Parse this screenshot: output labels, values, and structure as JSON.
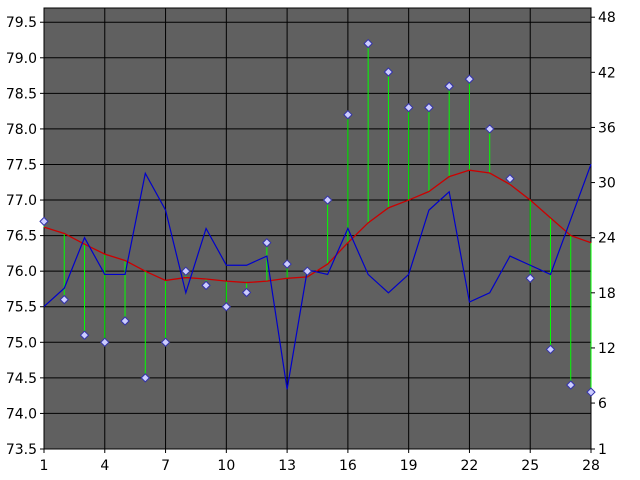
{
  "chart_data": {
    "type": "line",
    "x": [
      1,
      2,
      3,
      4,
      5,
      6,
      7,
      8,
      9,
      10,
      11,
      12,
      13,
      14,
      15,
      16,
      17,
      18,
      19,
      20,
      21,
      22,
      23,
      24,
      25,
      26,
      27,
      28
    ],
    "x_ticks": [
      1,
      4,
      7,
      10,
      13,
      16,
      19,
      22,
      25,
      28
    ],
    "xlim": [
      1,
      28
    ],
    "y_left": {
      "lim": [
        73.5,
        79.7
      ],
      "ticks": [
        73.5,
        74.0,
        74.5,
        75.0,
        75.5,
        76.0,
        76.5,
        77.0,
        77.5,
        78.0,
        78.5,
        79.0,
        79.5
      ],
      "tick_labels": [
        "73.5",
        "74.0",
        "74.5",
        "75.0",
        "75.5",
        "76.0",
        "76.5",
        "77.0",
        "77.5",
        "78.0",
        "78.5",
        "79.0",
        "79.5"
      ]
    },
    "y_right": {
      "lim": [
        1,
        49
      ],
      "ticks": [
        1,
        6,
        12,
        18,
        24,
        30,
        36,
        42,
        48
      ],
      "tick_labels": [
        "1",
        "6",
        "12",
        "18",
        "24",
        "30",
        "36",
        "42",
        "48"
      ]
    },
    "grid": true,
    "series": [
      {
        "style": "markers-with-drop-lines",
        "axis": "left",
        "color": "#ccccff",
        "line_color": "#00ff00",
        "values": [
          76.7,
          75.6,
          75.1,
          75.0,
          75.3,
          74.5,
          75.0,
          76.0,
          75.8,
          75.5,
          75.7,
          76.4,
          76.1,
          76.0,
          77.0,
          78.2,
          79.2,
          78.8,
          78.3,
          78.3,
          78.6,
          78.7,
          78.0,
          77.3,
          75.9,
          74.9,
          74.4,
          74.3
        ]
      },
      {
        "style": "line",
        "axis": "left",
        "color": "#cc0000",
        "values": [
          76.62,
          76.53,
          76.38,
          76.24,
          76.15,
          76.0,
          75.87,
          75.91,
          75.89,
          75.86,
          75.84,
          75.86,
          75.9,
          75.92,
          76.1,
          76.4,
          76.68,
          76.89,
          77.0,
          77.12,
          77.33,
          77.42,
          77.38,
          77.22,
          77.0,
          76.75,
          76.5,
          76.4
        ]
      },
      {
        "style": "line",
        "axis": "right",
        "color": "#0000cc",
        "values": [
          16.5,
          18.5,
          24,
          20,
          20,
          31,
          27,
          18,
          25,
          21,
          21,
          22,
          7.5,
          20.5,
          20,
          25,
          20,
          18,
          20,
          27,
          29,
          17,
          18,
          22,
          21,
          20,
          26,
          32
        ]
      }
    ]
  }
}
